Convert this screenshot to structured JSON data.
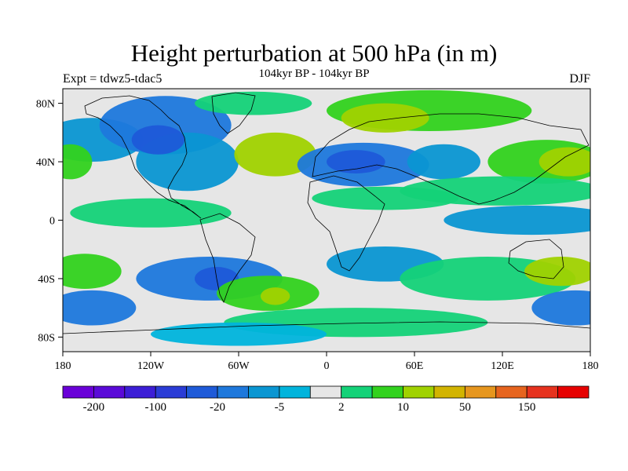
{
  "title": "Height perturbation at 500 hPa (in m)",
  "subtitle": "104kyr BP - 104kyr BP",
  "left_label": "Expt = tdwz5-tdac5",
  "right_label": "DJF",
  "map": {
    "projection": "cylindrical equidistant",
    "lon_range": [
      -180,
      180
    ],
    "lat_range": [
      -90,
      90
    ],
    "x_ticks": [
      {
        "lon": -180,
        "label": "180"
      },
      {
        "lon": -120,
        "label": "120W"
      },
      {
        "lon": -60,
        "label": "60W"
      },
      {
        "lon": 0,
        "label": "0"
      },
      {
        "lon": 60,
        "label": "60E"
      },
      {
        "lon": 120,
        "label": "120E"
      },
      {
        "lon": 180,
        "label": "180"
      }
    ],
    "y_ticks": [
      {
        "lat": 80,
        "label": "80N"
      },
      {
        "lat": 40,
        "label": "40N"
      },
      {
        "lat": 0,
        "label": "0"
      },
      {
        "lat": -40,
        "label": "40S"
      },
      {
        "lat": -80,
        "label": "80S"
      }
    ],
    "background_color": "#e6e6e6",
    "coastline_color": "#000000"
  },
  "colorbar": {
    "colors": [
      "#6a00d8",
      "#5a0ad8",
      "#3c1ed6",
      "#2a3cd6",
      "#1e5ad8",
      "#1e78dc",
      "#0a96d2",
      "#00b4dc",
      "#e6e6e6",
      "#14d278",
      "#32d21e",
      "#a0d200",
      "#d2b400",
      "#e6961e",
      "#e6641e",
      "#e6321e",
      "#e60000"
    ],
    "labels": [
      {
        "text": "-200",
        "after_box": 1
      },
      {
        "text": "-100",
        "after_box": 3
      },
      {
        "text": "-20",
        "after_box": 5
      },
      {
        "text": "-5",
        "after_box": 7
      },
      {
        "text": "2",
        "after_box": 9
      },
      {
        "text": "10",
        "after_box": 11
      },
      {
        "text": "50",
        "after_box": 13
      },
      {
        "text": "150",
        "after_box": 15
      }
    ]
  },
  "field_blobs": [
    {
      "lon": -160,
      "lat": 55,
      "rx": 35,
      "ry": 15,
      "v": -2
    },
    {
      "lon": -110,
      "lat": 65,
      "rx": 45,
      "ry": 20,
      "v": -3
    },
    {
      "lon": -95,
      "lat": 40,
      "rx": 35,
      "ry": 20,
      "v": -2
    },
    {
      "lon": -115,
      "lat": 55,
      "rx": 18,
      "ry": 10,
      "v": -4
    },
    {
      "lon": -50,
      "lat": 80,
      "rx": 40,
      "ry": 8,
      "v": 1
    },
    {
      "lon": -35,
      "lat": 45,
      "rx": 28,
      "ry": 15,
      "v": 3
    },
    {
      "lon": 25,
      "lat": 38,
      "rx": 45,
      "ry": 15,
      "v": -3
    },
    {
      "lon": 20,
      "lat": 40,
      "rx": 20,
      "ry": 8,
      "v": -4
    },
    {
      "lon": 80,
      "lat": 40,
      "rx": 25,
      "ry": 12,
      "v": -2
    },
    {
      "lon": 70,
      "lat": 75,
      "rx": 70,
      "ry": 14,
      "v": 2
    },
    {
      "lon": 40,
      "lat": 70,
      "rx": 30,
      "ry": 10,
      "v": 3
    },
    {
      "lon": 150,
      "lat": 40,
      "rx": 40,
      "ry": 15,
      "v": 2
    },
    {
      "lon": 165,
      "lat": 40,
      "rx": 20,
      "ry": 10,
      "v": 3
    },
    {
      "lon": -175,
      "lat": 40,
      "rx": 15,
      "ry": 12,
      "v": 2
    },
    {
      "lon": 120,
      "lat": 20,
      "rx": 70,
      "ry": 10,
      "v": 1
    },
    {
      "lon": 40,
      "lat": 15,
      "rx": 50,
      "ry": 8,
      "v": 1
    },
    {
      "lon": 140,
      "lat": 0,
      "rx": 60,
      "ry": 10,
      "v": -2
    },
    {
      "lon": -120,
      "lat": 5,
      "rx": 55,
      "ry": 10,
      "v": 1
    },
    {
      "lon": -80,
      "lat": -40,
      "rx": 50,
      "ry": 15,
      "v": -3
    },
    {
      "lon": -75,
      "lat": -40,
      "rx": 15,
      "ry": 8,
      "v": -4
    },
    {
      "lon": -40,
      "lat": -50,
      "rx": 35,
      "ry": 12,
      "v": 2
    },
    {
      "lon": -35,
      "lat": -52,
      "rx": 10,
      "ry": 6,
      "v": 3
    },
    {
      "lon": 40,
      "lat": -30,
      "rx": 40,
      "ry": 12,
      "v": -2
    },
    {
      "lon": 110,
      "lat": -40,
      "rx": 60,
      "ry": 15,
      "v": 1
    },
    {
      "lon": 160,
      "lat": -35,
      "rx": 25,
      "ry": 10,
      "v": 3
    },
    {
      "lon": -165,
      "lat": -35,
      "rx": 25,
      "ry": 12,
      "v": 2
    },
    {
      "lon": -160,
      "lat": -60,
      "rx": 30,
      "ry": 12,
      "v": -3
    },
    {
      "lon": 170,
      "lat": -60,
      "rx": 30,
      "ry": 12,
      "v": -3
    },
    {
      "lon": 20,
      "lat": -70,
      "rx": 90,
      "ry": 10,
      "v": 1
    },
    {
      "lon": -60,
      "lat": -78,
      "rx": 60,
      "ry": 8,
      "v": -1
    }
  ]
}
